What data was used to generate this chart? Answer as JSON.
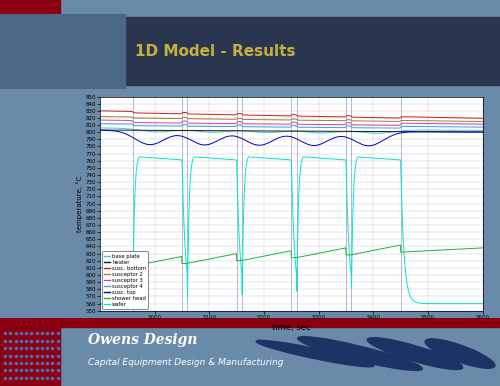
{
  "title": "1D Model - Results",
  "xlabel": "time, sec",
  "ylabel": "temperature, °C",
  "xlim": [
    4900,
    5600
  ],
  "ylim": [
    550,
    850
  ],
  "xticks": [
    5000,
    5100,
    5200,
    5300,
    5400,
    5500,
    5600
  ],
  "ytick_step": 10,
  "slide_bg": "#6a8aaa",
  "inner_bg": "#5578a0",
  "plot_bg": "#ffffff",
  "title_color": "#c8b040",
  "top_bar_color": "#1a1a1a",
  "footer_bg": "#0d1520",
  "red_accent": "#8b0010",
  "owens_text": "Owens Design",
  "owens_sub": "Capital Equipment Design & Manufacturing",
  "legend_entries": [
    {
      "label": "base plate",
      "color": "#40c8d0"
    },
    {
      "label": "heater",
      "color": "#1a1a1a"
    },
    {
      "label": "susc. bottom",
      "color": "#cc2020"
    },
    {
      "label": "susceptor 2",
      "color": "#a08020"
    },
    {
      "label": "susceptor 3",
      "color": "#cc40cc"
    },
    {
      "label": "susceptor 4",
      "color": "#40a0d0"
    },
    {
      "label": "susc. top",
      "color": "#0000c0"
    },
    {
      "label": "shower head",
      "color": "#20b040"
    },
    {
      "label": "wafer",
      "color": "#00e8c8"
    }
  ],
  "process_starts": [
    4960,
    5060,
    5160,
    5260,
    5360
  ],
  "process_ends": [
    5050,
    5150,
    5250,
    5350,
    5450
  ]
}
